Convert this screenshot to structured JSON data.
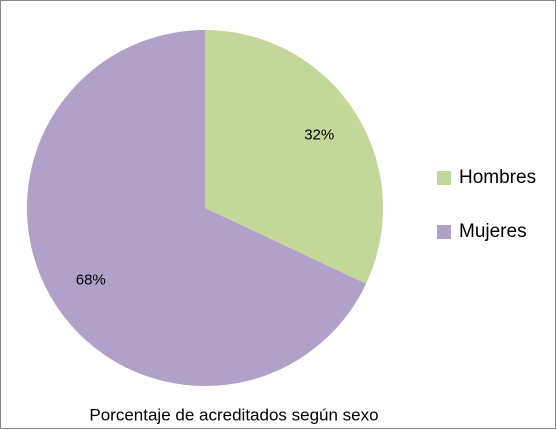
{
  "chart_data": {
    "type": "pie",
    "title": "Porcentaje de acreditados según sexo",
    "categories": [
      "Hombres",
      "Mujeres"
    ],
    "values": [
      32,
      68
    ],
    "value_labels": [
      "32%",
      "68%"
    ],
    "colors": [
      "#c4d79b",
      "#b1a0c7"
    ],
    "legend": "right"
  }
}
